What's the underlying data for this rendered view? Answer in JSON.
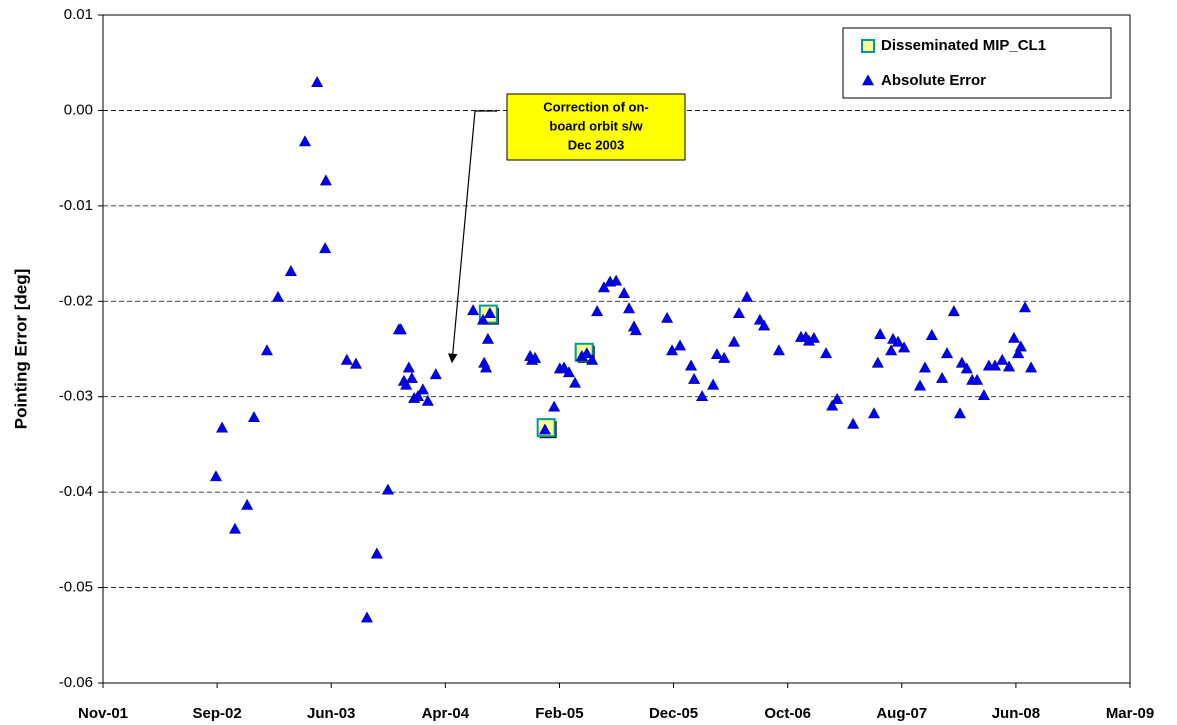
{
  "chart_data": {
    "type": "scatter",
    "ylabel": "Pointing Error [deg]",
    "xlim": [
      37200,
      39900
    ],
    "xticks": [
      {
        "value": 37200,
        "label": "Nov-01"
      },
      {
        "value": 37500,
        "label": "Sep-02"
      },
      {
        "value": 37800,
        "label": "Jun-03"
      },
      {
        "value": 38100,
        "label": "Apr-04"
      },
      {
        "value": 38400,
        "label": "Feb-05"
      },
      {
        "value": 38700,
        "label": "Dec-05"
      },
      {
        "value": 39000,
        "label": "Oct-06"
      },
      {
        "value": 39300,
        "label": "Aug-07"
      },
      {
        "value": 39600,
        "label": "Jun-08"
      },
      {
        "value": 39900,
        "label": "Mar-09"
      }
    ],
    "ylim": [
      -0.06,
      0.01
    ],
    "yticks": [
      0.01,
      {
        "value": 0,
        "label": "0.00"
      },
      -0.01,
      -0.02,
      -0.03,
      -0.04,
      -0.05,
      -0.06
    ],
    "grid": true,
    "legend": "upper right",
    "annotation": {
      "lines": [
        "Correction of on-",
        "board orbit s/w",
        "Dec 2003"
      ],
      "color": "#ffff00"
    },
    "series": [
      {
        "name": "Disseminated MIP_CL1",
        "marker": "square",
        "color": "#ffff99",
        "edgecolor": "#009999",
        "x": [
          38217,
          38469,
          38369
        ],
        "values": [
          -0.0215,
          -0.0255,
          -0.0334
        ]
      },
      {
        "name": "Absolute Error",
        "marker": "triangle",
        "color": "#0000ff",
        "edgecolor": "#000080",
        "x": [
          37497,
          37513,
          37547,
          37579,
          37597,
          37631,
          37660,
          37694,
          37731,
          37763,
          37786,
          37784,
          37841,
          37865,
          37894,
          37920,
          37949,
          37978,
          37983,
          37991,
          37997,
          38004,
          38012,
          38018,
          38028,
          38041,
          38054,
          38075,
          38173,
          38199,
          38202,
          38207,
          38212,
          38217,
          38323,
          38328,
          38336,
          38362,
          38386,
          38401,
          38412,
          38425,
          38441,
          38459,
          38472,
          38486,
          38499,
          38517,
          38533,
          38549,
          38570,
          38583,
          38596,
          38601,
          38683,
          38696,
          38717,
          38746,
          38754,
          38775,
          38804,
          38814,
          38833,
          38859,
          38872,
          38893,
          38927,
          38938,
          38977,
          39035,
          39048,
          39056,
          39069,
          39101,
          39117,
          39130,
          39172,
          39227,
          39237,
          39243,
          39272,
          39277,
          39290,
          39306,
          39348,
          39361,
          39379,
          39406,
          39419,
          39437,
          39453,
          39458,
          39471,
          39485,
          39498,
          39516,
          39529,
          39545,
          39564,
          39582,
          39595,
          39606,
          39613,
          39624,
          39640
        ],
        "values": [
          -0.0384,
          -0.0333,
          -0.0439,
          -0.0414,
          -0.0322,
          -0.0252,
          -0.0196,
          -0.0169,
          -0.0033,
          0.0029,
          -0.0074,
          -0.0145,
          -0.0262,
          -0.0266,
          -0.0532,
          -0.0465,
          -0.0398,
          -0.023,
          -0.023,
          -0.0284,
          -0.0288,
          -0.027,
          -0.0281,
          -0.0302,
          -0.03,
          -0.0293,
          -0.0305,
          -0.0277,
          -0.021,
          -0.022,
          -0.0265,
          -0.027,
          -0.024,
          -0.0213,
          -0.0258,
          -0.0262,
          -0.026,
          -0.0335,
          -0.0311,
          -0.0271,
          -0.027,
          -0.0275,
          -0.0286,
          -0.0258,
          -0.0255,
          -0.0262,
          -0.0211,
          -0.0186,
          -0.018,
          -0.0179,
          -0.0192,
          -0.0208,
          -0.0227,
          -0.0231,
          -0.0218,
          -0.0252,
          -0.0247,
          -0.0268,
          -0.0282,
          -0.03,
          -0.0288,
          -0.0256,
          -0.026,
          -0.0243,
          -0.0213,
          -0.0196,
          -0.022,
          -0.0226,
          -0.0252,
          -0.0238,
          -0.0238,
          -0.0242,
          -0.0239,
          -0.0255,
          -0.031,
          -0.0303,
          -0.0329,
          -0.0318,
          -0.0265,
          -0.0235,
          -0.0252,
          -0.024,
          -0.0243,
          -0.0249,
          -0.0289,
          -0.027,
          -0.0236,
          -0.0281,
          -0.0255,
          -0.0211,
          -0.0318,
          -0.0265,
          -0.0271,
          -0.0283,
          -0.0283,
          -0.0299,
          -0.0268,
          -0.0268,
          -0.0262,
          -0.0269,
          -0.0239,
          -0.0255,
          -0.0248,
          -0.0207,
          -0.027
        ]
      }
    ]
  }
}
